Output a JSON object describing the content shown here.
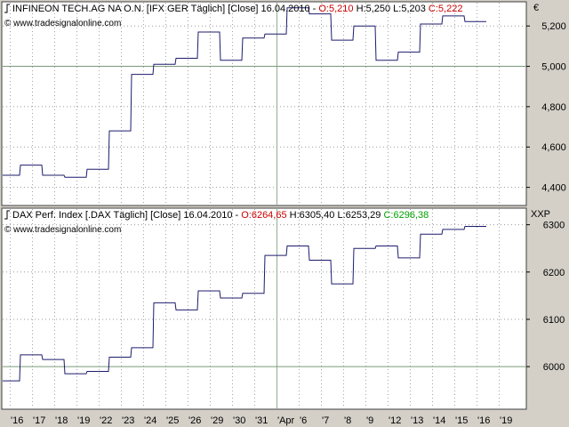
{
  "watermark": "© www.tradesignalonline.com",
  "colors": {
    "line": "#1c1c6e",
    "red": "#cc0000",
    "green": "#00a000",
    "grid": "#9a9a9a",
    "refline": "#7a9a7a"
  },
  "chart_data": [
    {
      "type": "line",
      "step": true,
      "title_prefix": "INFINEON TECH.AG NA O.N. [IFX GER  Täglich] [Close] 16.04.2010 - ",
      "ohlc": {
        "open": "O:5,210",
        "high": " H:5,250",
        "low": " L:5,203",
        "close": " C:5,222"
      },
      "currency": "€",
      "y_ticks": [
        4400,
        4600,
        4800,
        5000,
        5200
      ],
      "y_tick_labels": [
        "4,400",
        "4,600",
        "4,800",
        "5,000",
        "5,200"
      ],
      "ylim": [
        4310,
        5320
      ],
      "reference_line": 5000,
      "values": [
        4460,
        4510,
        4460,
        4450,
        4490,
        4680,
        4960,
        5010,
        5040,
        5170,
        5030,
        5140,
        5160,
        5290,
        5260,
        5130,
        5200,
        5030,
        5070,
        5210,
        5250,
        5222
      ]
    },
    {
      "type": "line",
      "step": true,
      "title_prefix": "DAX Perf. Index [.DAX  Täglich] [Close] 16.04.2010 - ",
      "ohlc": {
        "open": "O:6264,65",
        "high": " H:6305,40",
        "low": " L:6253,29",
        "close": " C:6296,38"
      },
      "currency": "XXP",
      "y_ticks": [
        6000,
        6100,
        6200,
        6300
      ],
      "y_tick_labels": [
        "6000",
        "6100",
        "6200",
        "6300"
      ],
      "ylim": [
        5910,
        6335
      ],
      "reference_line": 6000,
      "values": [
        5970,
        6025,
        6015,
        5985,
        5990,
        6020,
        6040,
        6135,
        6120,
        6160,
        6145,
        6155,
        6235,
        6255,
        6225,
        6175,
        6250,
        6255,
        6230,
        6280,
        6290,
        6296.38
      ]
    }
  ],
  "x_axis": {
    "labels": [
      "16",
      "17",
      "18",
      "19",
      "22",
      "23",
      "24",
      "25",
      "26",
      "29",
      "30",
      "31",
      "Apr",
      "6",
      "7",
      "8",
      "9",
      "12",
      "13",
      "14",
      "15",
      "16",
      "19"
    ],
    "label_text": [
      "'16",
      "'17",
      "'18",
      "'19",
      "'22",
      "'23",
      "'24",
      "'25",
      "'26",
      "'29",
      "'30",
      "'31",
      "'Apr",
      "'6",
      "'7",
      "'8",
      "'9",
      "'12",
      "'13",
      "'14",
      "'15",
      "'16",
      "'19"
    ],
    "month_break_index": 12
  }
}
